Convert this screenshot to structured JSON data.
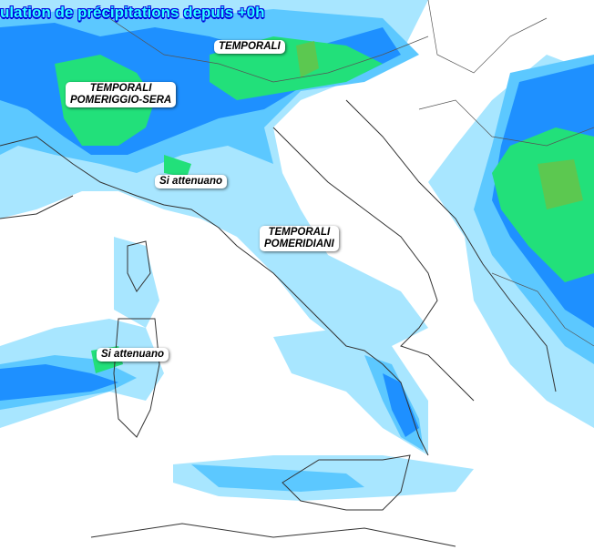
{
  "title": "ulation de précipitations depuis +0h",
  "colors": {
    "light": "#a8e6ff",
    "mid": "#5cc8ff",
    "blue": "#1e90ff",
    "deep": "#0a64f0",
    "green": "#22e07a",
    "olive": "#5cc850",
    "land": "#ffffff",
    "border": "#333333"
  },
  "labels": [
    {
      "lines": [
        "TEMPORALI"
      ]
    },
    {
      "lines": [
        "TEMPORALI",
        "POMERIGGIO-SERA"
      ]
    },
    {
      "lines": [
        "Si attenuano"
      ]
    },
    {
      "lines": [
        "TEMPORALI",
        "POMERIDIANI"
      ]
    },
    {
      "lines": [
        "Si attenuano"
      ]
    }
  ]
}
